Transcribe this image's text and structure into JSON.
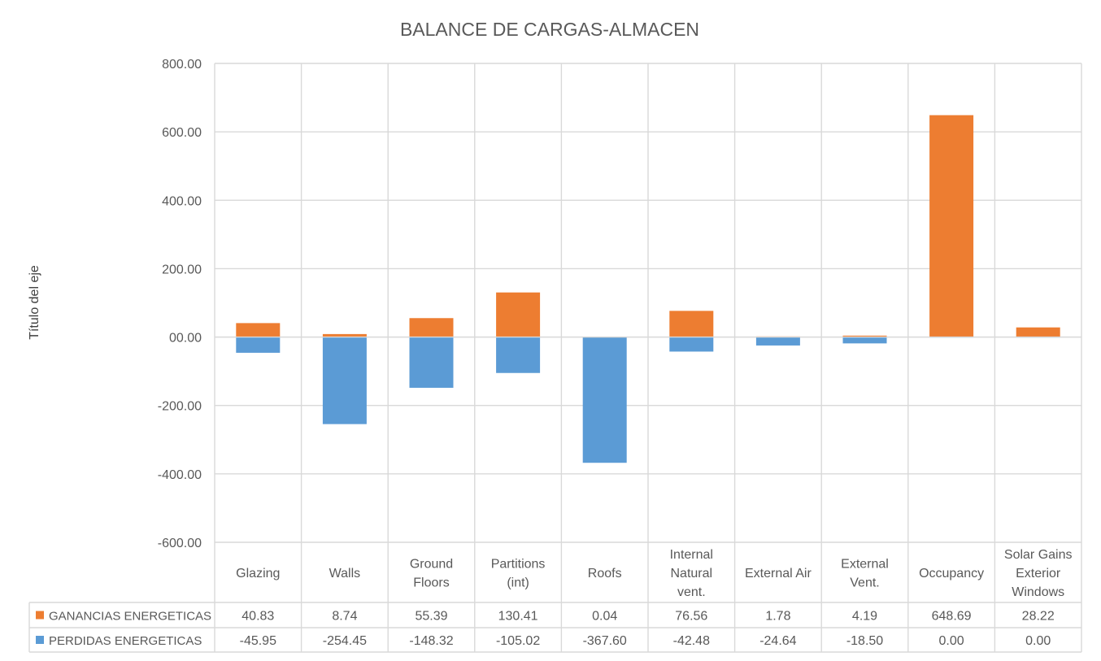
{
  "chart_data": {
    "type": "bar",
    "title": "BALANCE DE CARGAS-ALMACEN",
    "ylabel": "Título del eje",
    "xlabel": "",
    "ylim": [
      -600,
      800
    ],
    "ytick_step": 200,
    "yticks": [
      "800.00",
      "600.00",
      "400.00",
      "200.00",
      "00.00",
      "-200.00",
      "-400.00",
      "-600.00"
    ],
    "grid": true,
    "legend_position": "data-table",
    "categories": [
      [
        "Glazing"
      ],
      [
        "Walls"
      ],
      [
        "Ground",
        "Floors"
      ],
      [
        "Partitions",
        "(int)"
      ],
      [
        "Roofs"
      ],
      [
        "Internal",
        "Natural",
        "vent."
      ],
      [
        "External Air"
      ],
      [
        "External",
        "Vent."
      ],
      [
        "Occupancy"
      ],
      [
        "Solar Gains",
        "Exterior",
        "Windows"
      ]
    ],
    "series": [
      {
        "name": "GANANCIAS ENERGETICAS",
        "color": "#ED7D31",
        "values": [
          40.83,
          8.74,
          55.39,
          130.41,
          0.04,
          76.56,
          1.78,
          4.19,
          648.69,
          28.22
        ],
        "labels": [
          "40.83",
          "8.74",
          "55.39",
          "130.41",
          "0.04",
          "76.56",
          "1.78",
          "4.19",
          "648.69",
          "28.22"
        ]
      },
      {
        "name": "PERDIDAS ENERGETICAS",
        "color": "#5B9BD5",
        "values": [
          -45.95,
          -254.45,
          -148.32,
          -105.02,
          -367.6,
          -42.48,
          -24.64,
          -18.5,
          0.0,
          0.0
        ],
        "labels": [
          "-45.95",
          "-254.45",
          "-148.32",
          "-105.02",
          "-367.60",
          "-42.48",
          "-24.64",
          "-18.50",
          "0.00",
          "0.00"
        ]
      }
    ]
  }
}
